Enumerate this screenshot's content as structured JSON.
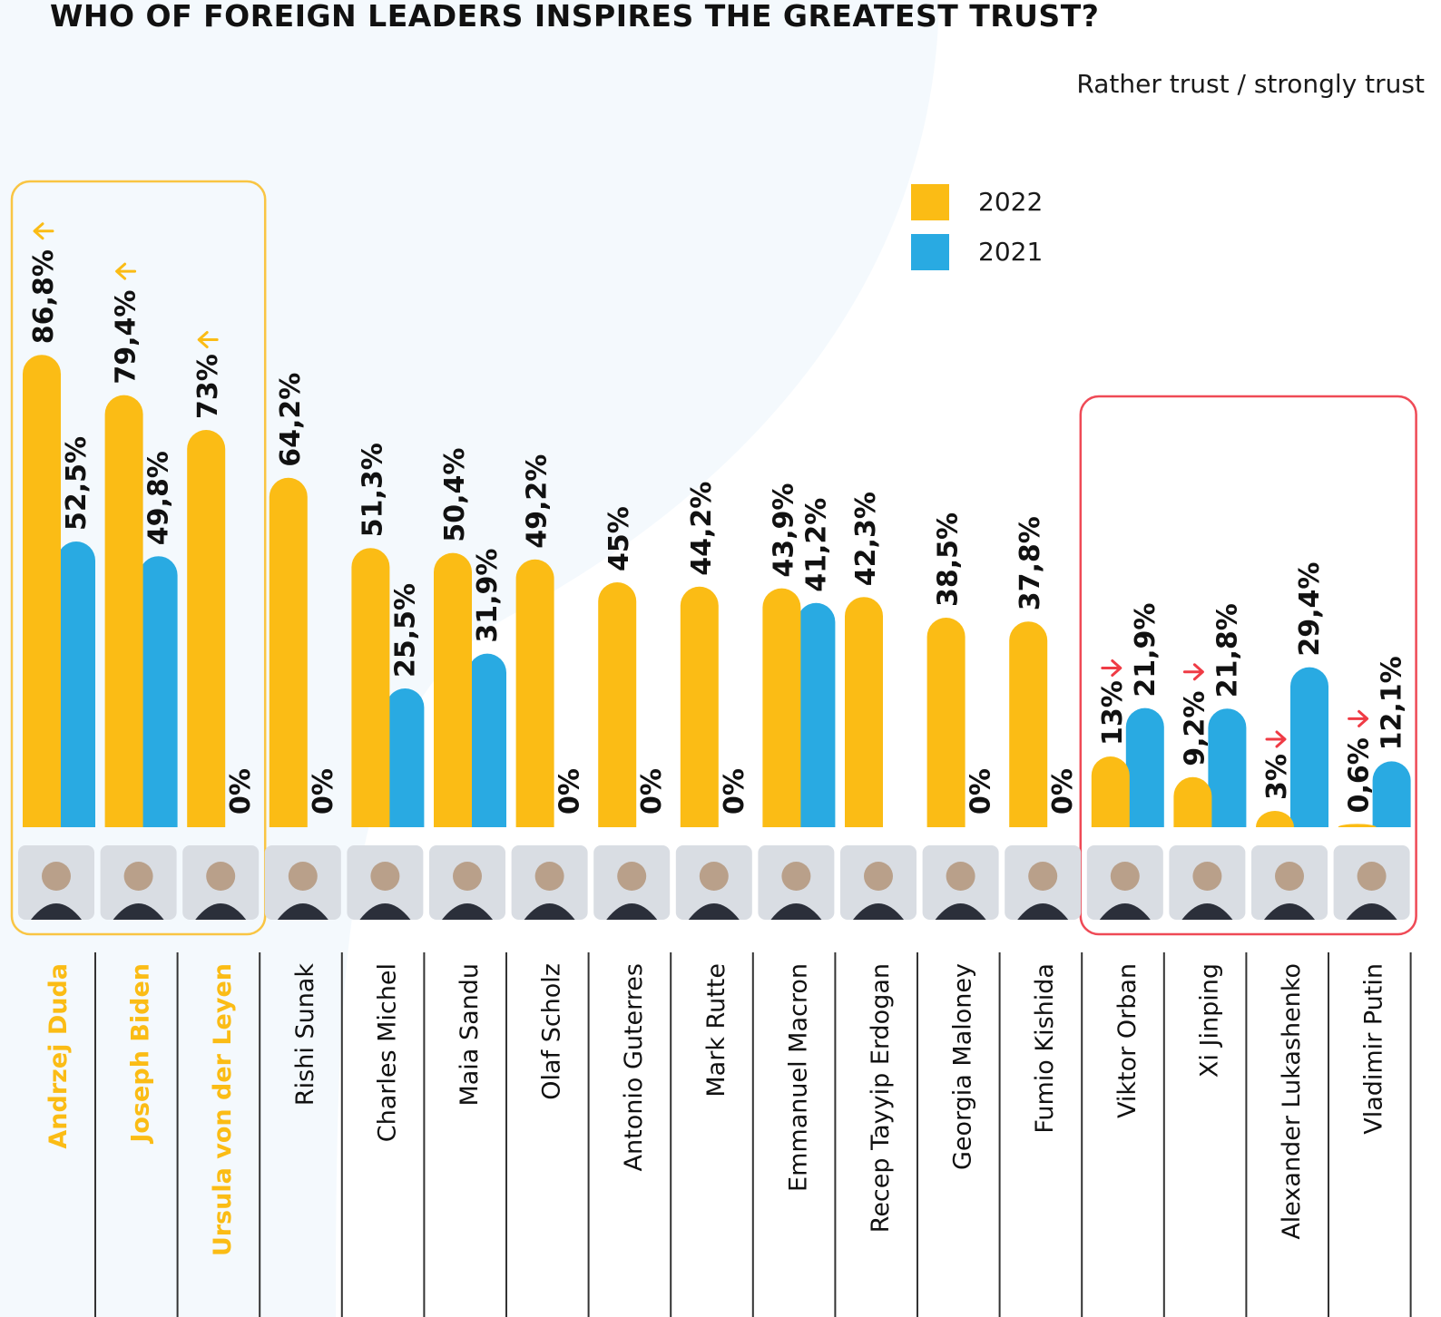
{
  "colors": {
    "y2022": "#fbbc15",
    "y2021": "#29aae2",
    "arrow_up": "#fbbc15",
    "arrow_down": "#ef3b45",
    "highlight_trust": "#f9c543",
    "highlight_distrust": "#ef4a56",
    "separator": "#333333",
    "background_arc": "#f4f9fd"
  },
  "chart_data": {
    "type": "bar",
    "title": "WHO OF FOREIGN LEADERS INSPIRES THE GREATEST TRUST?",
    "subtitle": "Rather trust / strongly trust",
    "legend": [
      {
        "name": "2022",
        "color": "#fbbc15"
      },
      {
        "name": "2021",
        "color": "#29aae2"
      }
    ],
    "legend_position": "top-right",
    "grid": false,
    "ylim": [
      0,
      100
    ],
    "categories": [
      "Andrzej Duda",
      "Joseph Biden",
      "Ursula von der Leyen",
      "Rishi Sunak",
      "Charles Michel",
      "Maia Sandu",
      "Olaf Scholz",
      "Antonio Guterres",
      "Mark Rutte",
      "Emmanuel Macron",
      "Recep Tayyip Erdogan",
      "Georgia Maloney",
      "Fumio Kishida",
      "Viktor Orban",
      "Xi Jinping",
      "Alexander Lukashenko",
      "Vladimir Putin"
    ],
    "series": [
      {
        "name": "2022",
        "values": [
          86.8,
          79.4,
          73,
          64.2,
          51.3,
          50.4,
          49.2,
          45,
          44.2,
          43.9,
          42.3,
          38.5,
          37.8,
          13,
          9.2,
          3,
          0.6
        ],
        "labels": [
          "86,8%",
          "79,4%",
          "73%",
          "64,2%",
          "51,3%",
          "50,4%",
          "49,2%",
          "45%",
          "44,2%",
          "43,9%",
          "42,3%",
          "38,5%",
          "37,8%",
          "13%",
          "9,2%",
          "3%",
          "0,6%"
        ]
      },
      {
        "name": "2021",
        "values": [
          52.5,
          49.8,
          0,
          0,
          25.5,
          31.9,
          0,
          0,
          0,
          41.2,
          0,
          0,
          0,
          21.9,
          21.8,
          29.4,
          12.1
        ],
        "labels": [
          "52,5%",
          "49,8%",
          "0%",
          "0%",
          "25,5%",
          "31,9%",
          "0%",
          "0%",
          "0%",
          "41,2%",
          "",
          "0%",
          "0%",
          "21,9%",
          "21,8%",
          "29,4%",
          "12,1%"
        ]
      }
    ],
    "highlights": [
      {
        "group": "most-trusted",
        "from": 0,
        "to": 2
      },
      {
        "group": "least-trusted",
        "from": 13,
        "to": 16
      }
    ],
    "trend_arrows": [
      {
        "category": 0,
        "direction": "up"
      },
      {
        "category": 1,
        "direction": "up"
      },
      {
        "category": 2,
        "direction": "up"
      },
      {
        "category": 13,
        "direction": "down"
      },
      {
        "category": 14,
        "direction": "down"
      },
      {
        "category": 15,
        "direction": "down"
      },
      {
        "category": 16,
        "direction": "down"
      }
    ]
  }
}
